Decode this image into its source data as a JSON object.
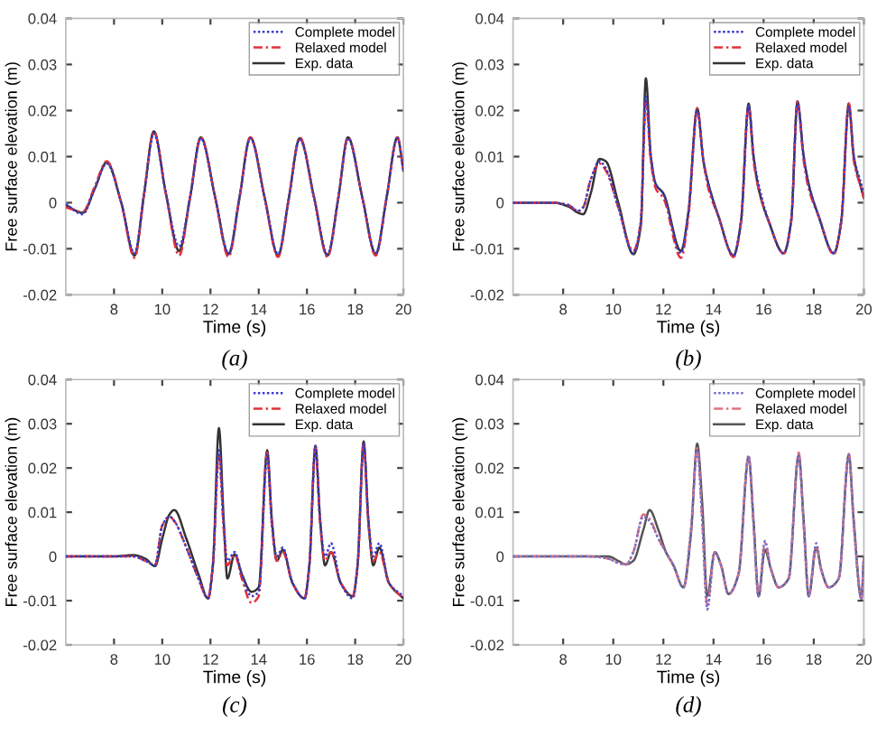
{
  "chart_data": [
    {
      "type": "line",
      "title": "(a)",
      "xlabel": "Time (s)",
      "ylabel": "Free surface elevation (m)",
      "xlim": [
        6,
        20
      ],
      "xticks": [
        8,
        10,
        12,
        14,
        16,
        18,
        20
      ],
      "ylim": [
        -0.02,
        0.04
      ],
      "yticks": [
        -0.02,
        -0.01,
        0,
        0.01,
        0.02,
        0.03,
        0.04
      ],
      "grid": false,
      "legend": "top right",
      "x": [
        6,
        6.7,
        7.2,
        7.7,
        8.3,
        8.85,
        9.25,
        9.65,
        10.15,
        10.7,
        11.15,
        11.6,
        12.2,
        12.75,
        13.2,
        13.65,
        14.25,
        14.8,
        15.25,
        15.7,
        16.3,
        16.85,
        17.3,
        17.7,
        18.3,
        18.85,
        19.3,
        19.75,
        20
      ],
      "series": [
        {
          "name": "Complete model",
          "color": "#3a3acc",
          "line_style": "dotted",
          "values": [
            -0.0003,
            -0.0025,
            0.003,
            0.0085,
            0,
            -0.011,
            0.002,
            0.015,
            0.002,
            -0.0095,
            0.001,
            0.014,
            0.001,
            -0.011,
            0.001,
            0.014,
            0.001,
            -0.0112,
            0.001,
            0.0138,
            0.001,
            -0.0112,
            0.001,
            0.014,
            0.001,
            -0.011,
            0.001,
            0.014,
            0.007
          ]
        },
        {
          "name": "Relaxed model",
          "color": "#e0303a",
          "line_style": "dashed",
          "values": [
            -0.001,
            -0.002,
            0.0035,
            0.009,
            0,
            -0.012,
            0.002,
            0.0155,
            0.002,
            -0.0115,
            0.001,
            0.0142,
            0.001,
            -0.0118,
            0.001,
            0.0142,
            0.001,
            -0.0118,
            0.001,
            0.0142,
            0.001,
            -0.0118,
            0.001,
            0.0142,
            0.001,
            -0.0115,
            0.001,
            0.0142,
            0.007
          ]
        },
        {
          "name": "Exp. data",
          "color": "#333333",
          "line_style": "solid",
          "values": [
            -0.0005,
            -0.0022,
            0.003,
            0.0088,
            0,
            -0.0115,
            0.002,
            0.0155,
            0.002,
            -0.0105,
            0.001,
            0.0142,
            0.001,
            -0.0112,
            0.001,
            0.0142,
            0.001,
            -0.0115,
            0.001,
            0.014,
            0.001,
            -0.0115,
            0.001,
            0.0142,
            0.001,
            -0.0112,
            0.001,
            0.0142,
            0.007
          ]
        }
      ]
    },
    {
      "type": "line",
      "title": "(b)",
      "xlabel": "Time (s)",
      "ylabel": "Free surface elevation (m)",
      "xlim": [
        6,
        20
      ],
      "xticks": [
        8,
        10,
        12,
        14,
        16,
        18,
        20
      ],
      "ylim": [
        -0.02,
        0.04
      ],
      "yticks": [
        -0.02,
        -0.01,
        0,
        0.01,
        0.02,
        0.03,
        0.04
      ],
      "grid": false,
      "legend": "top right",
      "x": [
        6,
        7.0,
        7.6,
        8.2,
        8.6,
        8.8,
        9.1,
        9.45,
        9.7,
        10.2,
        10.8,
        11.1,
        11.3,
        11.5,
        11.7,
        12.0,
        12.7,
        13.0,
        13.35,
        13.6,
        13.8,
        14.2,
        14.8,
        15.1,
        15.4,
        15.6,
        15.8,
        16.2,
        16.8,
        17.1,
        17.35,
        17.6,
        17.8,
        18.2,
        18.8,
        19.1,
        19.4,
        19.6,
        19.9,
        20
      ],
      "series": [
        {
          "name": "Complete model",
          "color": "#3a3acc",
          "line_style": "dotted",
          "values": [
            0,
            0,
            0,
            -0.0005,
            -0.0018,
            -0.001,
            0.005,
            0.009,
            0.0075,
            -0.001,
            -0.011,
            -0.004,
            0.023,
            0.01,
            0.004,
            0.002,
            -0.011,
            -0.002,
            0.02,
            0.009,
            0.004,
            -0.003,
            -0.0115,
            -0.004,
            0.021,
            0.01,
            0.004,
            -0.004,
            -0.011,
            -0.004,
            0.0215,
            0.01,
            0.004,
            -0.003,
            -0.011,
            -0.004,
            0.021,
            0.01,
            0.004,
            0.002
          ]
        },
        {
          "name": "Relaxed model",
          "color": "#e0303a",
          "line_style": "dashed",
          "values": [
            0,
            0,
            0,
            -0.0005,
            -0.0018,
            -0.001,
            0.005,
            0.0085,
            0.007,
            -0.001,
            -0.0105,
            -0.004,
            0.022,
            0.009,
            0.003,
            0.001,
            -0.012,
            -0.003,
            0.0205,
            0.009,
            0.003,
            -0.003,
            -0.0118,
            -0.004,
            0.021,
            0.009,
            0.003,
            -0.004,
            -0.011,
            -0.004,
            0.022,
            0.009,
            0.003,
            -0.003,
            -0.0112,
            -0.004,
            0.0215,
            0.009,
            0.003,
            0.001
          ]
        },
        {
          "name": "Exp. data",
          "color": "#333333",
          "line_style": "solid",
          "values": [
            0,
            0,
            0,
            -0.0008,
            -0.0022,
            -0.0025,
            0.002,
            0.0095,
            0.009,
            0.0,
            -0.0112,
            -0.005,
            0.027,
            0.01,
            0.004,
            0.002,
            -0.0105,
            -0.002,
            0.0205,
            0.009,
            0.004,
            -0.003,
            -0.0115,
            -0.004,
            0.0215,
            0.01,
            0.003,
            -0.004,
            -0.011,
            -0.004,
            0.022,
            0.01,
            0.004,
            -0.003,
            -0.011,
            -0.004,
            0.0215,
            0.01,
            0.003,
            0.001
          ]
        }
      ]
    },
    {
      "type": "line",
      "title": "(c)",
      "xlabel": "Time (s)",
      "ylabel": "Free surface elevation (m)",
      "xlim": [
        6,
        20
      ],
      "xticks": [
        8,
        10,
        12,
        14,
        16,
        18,
        20
      ],
      "ylim": [
        -0.02,
        0.04
      ],
      "yticks": [
        -0.02,
        -0.01,
        0,
        0.01,
        0.02,
        0.03,
        0.04
      ],
      "grid": false,
      "legend": "top right",
      "x": [
        6,
        8,
        8.8,
        9.3,
        9.7,
        10.0,
        10.3,
        10.5,
        11.0,
        11.5,
        11.9,
        12.1,
        12.35,
        12.55,
        12.7,
        13.0,
        13.3,
        13.7,
        14.0,
        14.35,
        14.55,
        14.75,
        15.0,
        15.4,
        15.9,
        16.1,
        16.35,
        16.55,
        16.75,
        17.0,
        17.4,
        17.9,
        18.1,
        18.35,
        18.55,
        18.75,
        19.0,
        19.4,
        20
      ],
      "series": [
        {
          "name": "Complete model",
          "color": "#3a3acc",
          "line_style": "dotted",
          "values": [
            0,
            0,
            0,
            -0.001,
            -0.002,
            0.007,
            0.009,
            0.008,
            0.002,
            -0.005,
            -0.0095,
            -0.002,
            0.024,
            0.007,
            -0.001,
            0.001,
            -0.004,
            -0.009,
            -0.008,
            0.023,
            0.007,
            0,
            0.002,
            -0.006,
            -0.0095,
            -0.002,
            0.025,
            0.008,
            0,
            0.003,
            -0.006,
            -0.0095,
            -0.002,
            0.0255,
            0.008,
            0,
            0.003,
            -0.006,
            -0.009
          ]
        },
        {
          "name": "Relaxed model",
          "color": "#e0303a",
          "line_style": "dashed",
          "values": [
            0,
            0,
            0,
            -0.001,
            -0.002,
            0.007,
            0.009,
            0.008,
            0.002,
            -0.005,
            -0.0095,
            -0.002,
            0.023,
            0.006,
            -0.002,
            0.0005,
            -0.005,
            -0.0105,
            -0.009,
            0.0235,
            0.007,
            -0.001,
            0.001,
            -0.006,
            -0.0095,
            -0.002,
            0.0245,
            0.007,
            -0.001,
            0.001,
            -0.006,
            -0.009,
            -0.002,
            0.0255,
            0.007,
            -0.001,
            0.001,
            -0.006,
            -0.0095
          ]
        },
        {
          "name": "Exp. data",
          "color": "#333333",
          "line_style": "solid",
          "values": [
            0,
            0,
            0.0003,
            -0.0005,
            -0.0022,
            0.004,
            0.0095,
            0.0105,
            0.004,
            -0.004,
            -0.0095,
            -0.002,
            0.029,
            0.008,
            -0.005,
            0.0005,
            -0.004,
            -0.008,
            -0.007,
            0.024,
            0.008,
            -0.001,
            0.0015,
            -0.006,
            -0.0095,
            -0.002,
            0.025,
            0.008,
            -0.002,
            0.001,
            -0.006,
            -0.009,
            -0.002,
            0.026,
            0.008,
            -0.002,
            0.002,
            -0.006,
            -0.0095
          ]
        }
      ]
    },
    {
      "type": "line",
      "title": "(d)",
      "xlabel": "Time (s)",
      "ylabel": "Free surface elevation (m)",
      "xlim": [
        6,
        20
      ],
      "xticks": [
        8,
        10,
        12,
        14,
        16,
        18,
        20
      ],
      "ylim": [
        -0.02,
        0.04
      ],
      "yticks": [
        -0.02,
        -0.01,
        0,
        0.01,
        0.02,
        0.03,
        0.04
      ],
      "grid": false,
      "legend": "top right",
      "x": [
        6,
        9,
        9.8,
        10.2,
        10.5,
        10.8,
        11.2,
        11.45,
        11.8,
        12.1,
        12.4,
        12.8,
        13.1,
        13.35,
        13.55,
        13.75,
        14.05,
        14.3,
        14.6,
        15.0,
        15.4,
        15.6,
        15.8,
        16.05,
        16.3,
        16.6,
        17.0,
        17.4,
        17.6,
        17.8,
        18.1,
        18.3,
        18.6,
        19.0,
        19.4,
        19.6,
        19.9,
        20
      ],
      "series": [
        {
          "name": "Complete model",
          "color": "#7070d0",
          "line_style": "dotted",
          "values": [
            0,
            0,
            -0.0005,
            -0.0015,
            -0.0018,
            0.001,
            0.009,
            0.008,
            0.004,
            0.001,
            -0.002,
            -0.007,
            0.006,
            0.024,
            0.008,
            -0.012,
            0.001,
            -0.002,
            -0.0085,
            -0.004,
            0.0225,
            0.007,
            -0.009,
            0.0035,
            -0.003,
            -0.007,
            -0.005,
            0.023,
            0.007,
            -0.009,
            0.003,
            -0.003,
            -0.007,
            -0.005,
            0.023,
            0.007,
            -0.0095,
            0
          ]
        },
        {
          "name": "Relaxed model",
          "color": "#e07080",
          "line_style": "dashed",
          "values": [
            0,
            0,
            -0.0005,
            -0.0015,
            -0.0018,
            0.001,
            0.0095,
            0.0085,
            0.004,
            0.001,
            -0.002,
            -0.007,
            0.006,
            0.0245,
            0.008,
            -0.011,
            0.001,
            -0.002,
            -0.0085,
            -0.004,
            0.023,
            0.007,
            -0.009,
            0.003,
            -0.003,
            -0.007,
            -0.005,
            0.0235,
            0.007,
            -0.009,
            0.0025,
            -0.003,
            -0.007,
            -0.005,
            0.0232,
            0.007,
            -0.0095,
            0
          ]
        },
        {
          "name": "Exp. data",
          "color": "#555555",
          "line_style": "solid",
          "values": [
            0,
            0,
            0,
            -0.001,
            -0.0018,
            -0.001,
            0.006,
            0.0105,
            0.006,
            0.001,
            -0.002,
            -0.007,
            0.005,
            0.0255,
            0.012,
            -0.009,
            0.001,
            -0.002,
            -0.0085,
            -0.004,
            0.0225,
            0.008,
            -0.009,
            0.0015,
            -0.003,
            -0.007,
            -0.005,
            0.023,
            0.008,
            -0.009,
            0.002,
            -0.003,
            -0.007,
            -0.005,
            0.023,
            0.008,
            -0.0095,
            0
          ]
        }
      ]
    }
  ]
}
